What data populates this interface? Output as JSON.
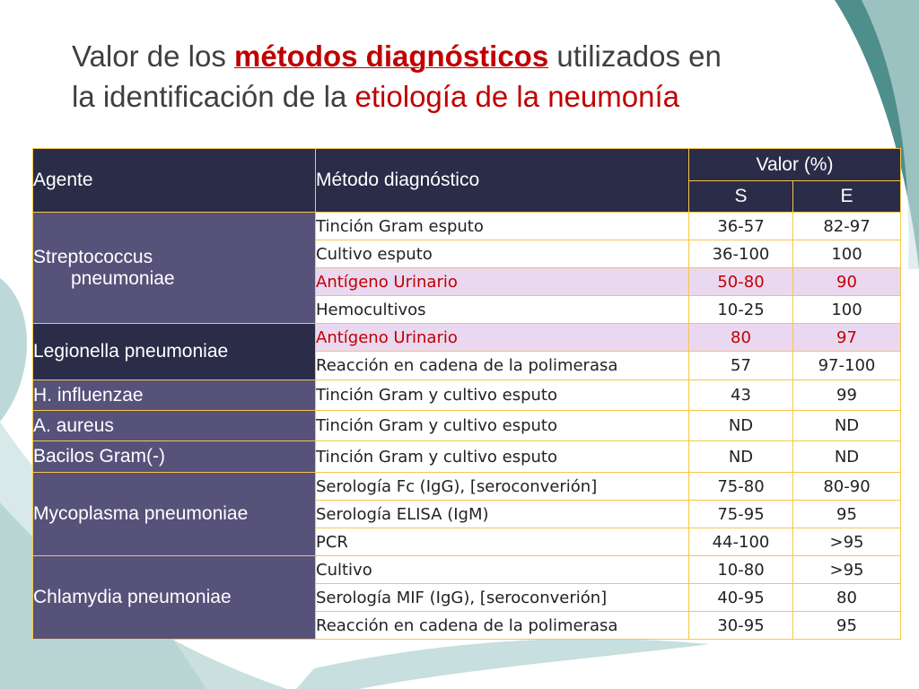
{
  "title": {
    "part1": "Valor de los ",
    "part2": "métodos diagnósticos",
    "part3": " utilizados en",
    "part4": "la identificación de la ",
    "part5": "etiología de la neumonía"
  },
  "table": {
    "headers": {
      "agente": "Agente",
      "metodo": "Método diagnóstico",
      "valor": "Valor (%)",
      "s": "S",
      "e": "E"
    },
    "groups": [
      {
        "agent": "Streptococcus",
        "agent_line2": "pneumoniae",
        "rows": [
          {
            "method": "Tinción Gram esputo",
            "s": "36-57",
            "e": "82-97",
            "highlight": false
          },
          {
            "method": "Cultivo esputo",
            "s": "36-100",
            "e": "100",
            "highlight": false
          },
          {
            "method": "Antígeno Urinario",
            "s": "50-80",
            "e": "90",
            "highlight": true
          },
          {
            "method": "Hemocultivos",
            "s": "10-25",
            "e": "100",
            "highlight": false
          }
        ]
      },
      {
        "agent": "Legionella pneumoniae",
        "rows": [
          {
            "method": "Antígeno Urinario",
            "s": "80",
            "e": "97",
            "highlight": true
          },
          {
            "method": "Reacción en cadena de la polimerasa",
            "s": "57",
            "e": "97-100",
            "highlight": false
          }
        ]
      },
      {
        "agent": "H. influenzae",
        "rows": [
          {
            "method": "Tinción Gram y cultivo esputo",
            "s": "43",
            "e": "99",
            "highlight": false
          }
        ]
      },
      {
        "agent": "A. aureus",
        "rows": [
          {
            "method": "Tinción Gram y cultivo esputo",
            "s": "ND",
            "e": "ND",
            "highlight": false
          }
        ]
      },
      {
        "agent": "Bacilos Gram(-)",
        "rows": [
          {
            "method": "Tinción Gram y cultivo esputo",
            "s": "ND",
            "e": "ND",
            "highlight": false
          }
        ]
      },
      {
        "agent": "Mycoplasma pneumoniae",
        "rows": [
          {
            "method": "Serología Fc (IgG),  [seroconverión]",
            "s": "75-80",
            "e": "80-90",
            "highlight": false
          },
          {
            "method": "Serología ELISA (IgM)",
            "s": "75-95",
            "e": "95",
            "highlight": false
          },
          {
            "method": "PCR",
            "s": "44-100",
            "e": ">95",
            "highlight": false
          }
        ]
      },
      {
        "agent": "Chlamydia pneumoniae",
        "rows": [
          {
            "method": "Cultivo",
            "s": "10-80",
            "e": ">95",
            "highlight": false
          },
          {
            "method": "Serología MIF (IgG), [seroconverión]",
            "s": "40-95",
            "e": "80",
            "highlight": false
          },
          {
            "method": "Reacción en cadena de la polimerasa",
            "s": "30-95",
            "e": "95",
            "highlight": false
          }
        ]
      }
    ]
  },
  "colors": {
    "header_bg": "#2b2c48",
    "agent_bg": "#57527a",
    "highlight_bg": "#ead8f0",
    "highlight_text": "#c00000",
    "grid": "#f6c64a",
    "teal": "#4e8f8c"
  }
}
